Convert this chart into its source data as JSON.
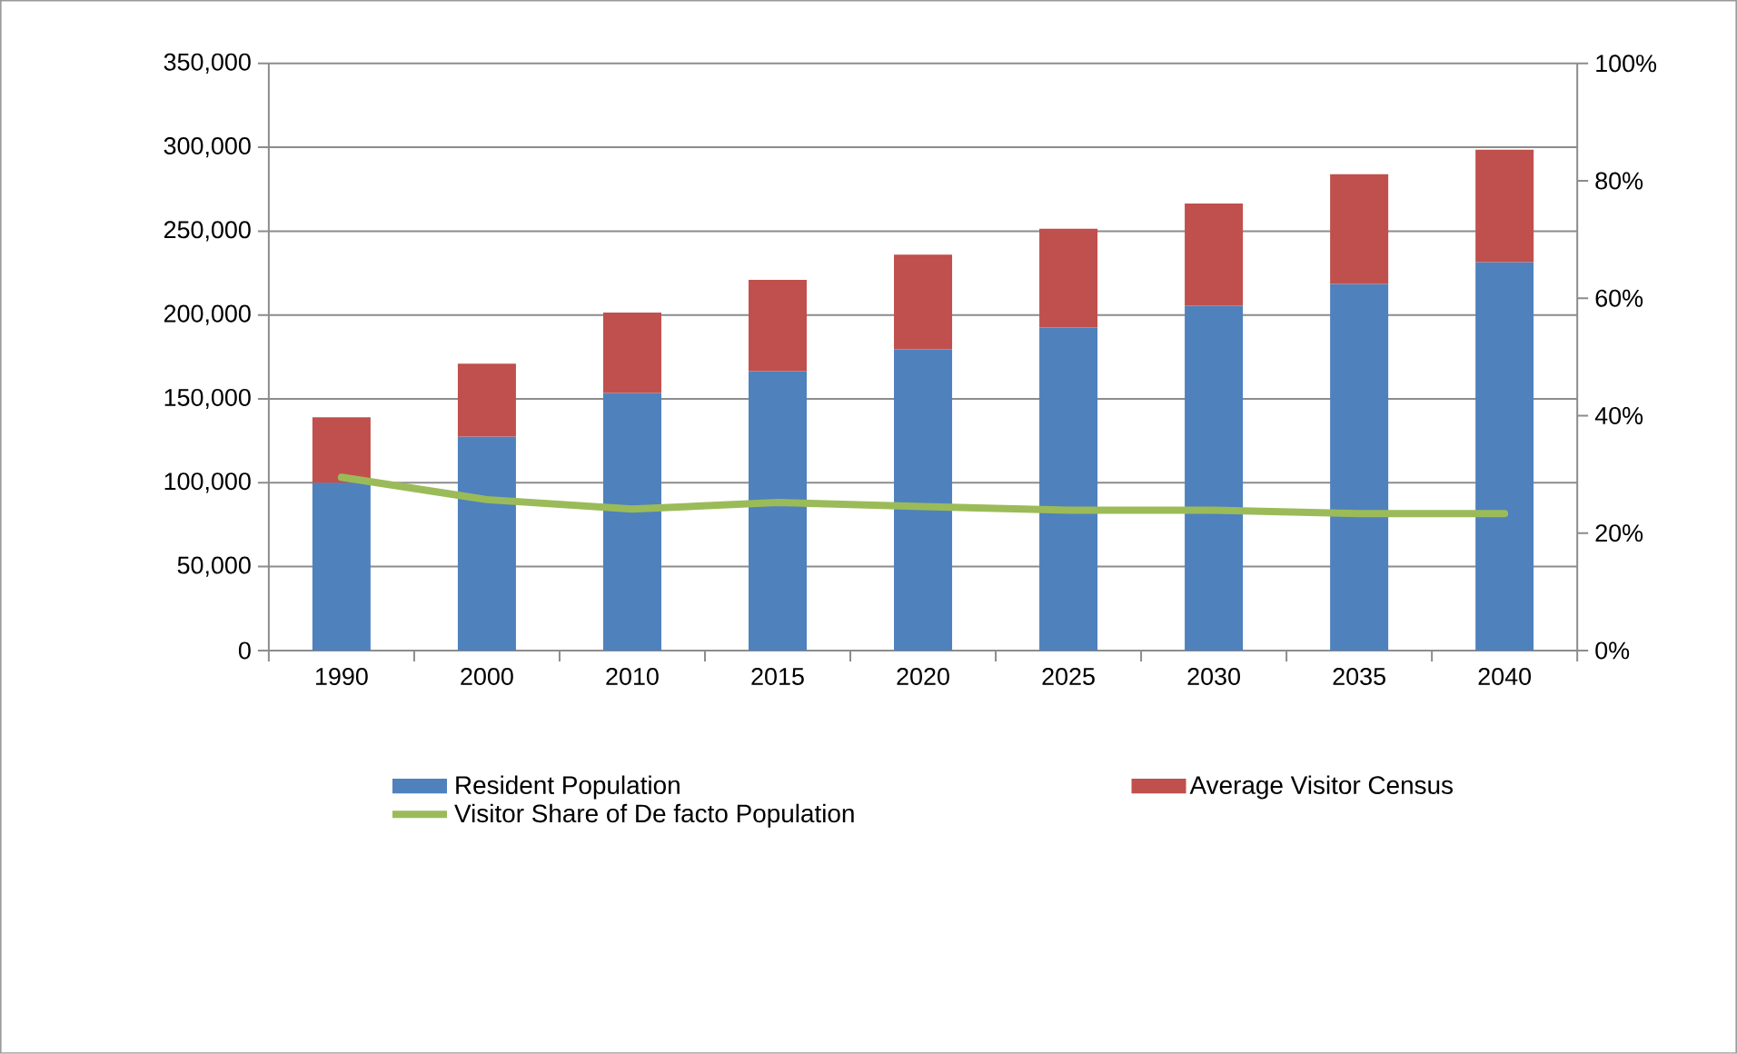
{
  "chart_data": {
    "type": "bar",
    "stacked": true,
    "categories": [
      "1990",
      "2000",
      "2010",
      "2015",
      "2020",
      "2025",
      "2030",
      "2035",
      "2040"
    ],
    "series": [
      {
        "name": "Resident Population",
        "color": "#4f81bd",
        "values": [
          100000,
          127500,
          153500,
          166500,
          179500,
          192500,
          205500,
          218500,
          231500
        ]
      },
      {
        "name": "Average Visitor Census",
        "color": "#c0504d",
        "values": [
          39000,
          43500,
          48000,
          54500,
          56500,
          59000,
          61000,
          65500,
          67000
        ]
      },
      {
        "name": "Visitor Share of De facto Population",
        "color": "#9bbb59",
        "type": "line",
        "axis": "y2",
        "values": [
          29.5,
          25.7,
          24.1,
          25.2,
          24.5,
          23.9,
          23.9,
          23.3,
          23.3
        ]
      }
    ],
    "ylim": [
      0,
      350000
    ],
    "yticks": [
      {
        "value": 0,
        "label": "0"
      },
      {
        "value": 50000,
        "label": "50,000"
      },
      {
        "value": 100000,
        "label": "100,000"
      },
      {
        "value": 150000,
        "label": "150,000"
      },
      {
        "value": 200000,
        "label": "200,000"
      },
      {
        "value": 250000,
        "label": "250,000"
      },
      {
        "value": 300000,
        "label": "300,000"
      },
      {
        "value": 350000,
        "label": "350,000"
      }
    ],
    "y2lim": [
      0,
      100
    ],
    "y2ticks": [
      {
        "value": 0,
        "label": "0%"
      },
      {
        "value": 20,
        "label": "20%"
      },
      {
        "value": 40,
        "label": "40%"
      },
      {
        "value": 60,
        "label": "60%"
      },
      {
        "value": 80,
        "label": "80%"
      },
      {
        "value": 100,
        "label": "100%"
      }
    ],
    "grid": "y",
    "legend": "bottom"
  }
}
